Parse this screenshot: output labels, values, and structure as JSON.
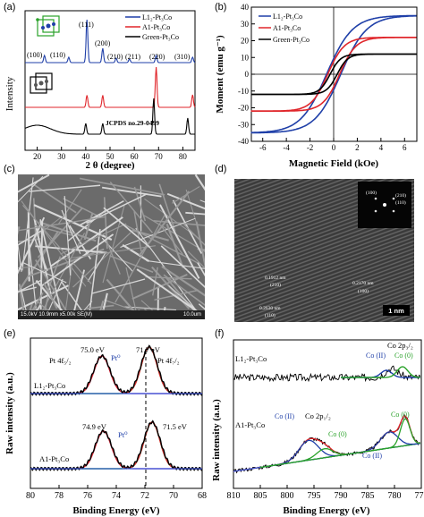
{
  "panels": {
    "a": {
      "label": "(a)",
      "xlabel": "2 θ (degree)",
      "ylabel": "Intensity",
      "xticks": [
        "20",
        "30",
        "40",
        "50",
        "60",
        "70",
        "80"
      ],
      "legend": [
        "L1₂-Pt₃Co",
        "A1-Pt₃Co",
        "Green-Pt₃Co"
      ],
      "peaks": [
        "(100)",
        "(110)",
        "(111)",
        "(200)",
        "(210)",
        "(211)",
        "(220)",
        "(310)"
      ],
      "ref": "JCPDS no.29-0499"
    },
    "b": {
      "label": "(b)",
      "xlabel": "Magnetic Field (kOe)",
      "ylabel": "Moment (emu g⁻¹)",
      "xticks": [
        "-6",
        "-4",
        "-2",
        "0",
        "2",
        "4",
        "6"
      ],
      "yticks": [
        "40",
        "30",
        "20",
        "10",
        "0",
        "-10",
        "-20",
        "-30",
        "-40"
      ],
      "legend": [
        "L1₂-Pt₃Co",
        "A1-Pt₃Co",
        "Green-Pt₃Co"
      ]
    },
    "c": {
      "label": "(c)",
      "sem_info": "15.0kV 10.9mm x5.00k SE(M)",
      "scale": "10.0um"
    },
    "d": {
      "label": "(d)",
      "fft_spots": [
        "(100)",
        "(210)",
        "(110)"
      ],
      "fringes": [
        "0.1912 nm",
        "(210)",
        "0.2170 nm",
        "(100)",
        "0.2630 nm",
        "(110)"
      ],
      "scale": "1 nm"
    },
    "e": {
      "label": "(e)",
      "xlabel": "Binding Energy (eV)",
      "ylabel": "Raw intensity (a.u.)",
      "xticks": [
        "80",
        "78",
        "76",
        "74",
        "72",
        "70",
        "68"
      ],
      "top": {
        "name": "L1₂-Pt₃Co",
        "pk1": "75.0 eV",
        "pk2": "71.7 eV",
        "l1": "Pt 4f₅/₂",
        "l2": "Pt 4f₇/₂",
        "pt": "Pt⁰"
      },
      "bottom": {
        "name": "A1-Pt₃Co",
        "pk1": "74.9 eV",
        "pk2": "71.5 eV",
        "pt": "Pt⁰"
      }
    },
    "f": {
      "label": "(f)",
      "xlabel": "Binding Energy (eV)",
      "ylabel": "Raw intensity (a.u.)",
      "xticks": [
        "810",
        "805",
        "800",
        "795",
        "790",
        "785",
        "780",
        "775"
      ],
      "top": {
        "name": "L1₂-Pt₃Co",
        "c1": "Co 2p₃/₂",
        "c2": "Co (II)",
        "c3": "Co (0)"
      },
      "bottom": {
        "name": "A1-Pt₃Co",
        "c1": "Co (II)",
        "c2": "Co 2p₁/₂",
        "c3": "Co (0)",
        "c4": "Co (0)",
        "c5": "Co (II)"
      }
    }
  },
  "chart_data": [
    {
      "type": "line",
      "title": "",
      "xlabel": "2 θ (degree)",
      "ylabel": "Intensity",
      "xlim": [
        15,
        85
      ],
      "series": [
        {
          "name": "L1₂-Pt₃Co",
          "peaks_2theta": [
            23,
            33,
            40.5,
            47,
            52.5,
            58,
            69,
            84
          ]
        },
        {
          "name": "A1-Pt₃Co",
          "peaks_2theta": [
            40.5,
            47,
            69,
            84
          ]
        },
        {
          "name": "Green-Pt₃Co",
          "peaks_2theta": [
            40,
            47,
            68,
            82
          ]
        }
      ]
    },
    {
      "type": "line",
      "xlabel": "Magnetic Field (kOe)",
      "ylabel": "Moment (emu g⁻¹)",
      "xlim": [
        -7,
        7
      ],
      "ylim": [
        -40,
        40
      ],
      "series": [
        {
          "name": "L1₂-Pt₃Co",
          "Ms": 35
        },
        {
          "name": "A1-Pt₃Co",
          "Ms": 22
        },
        {
          "name": "Green-Pt₃Co",
          "Ms": 12
        }
      ]
    }
  ],
  "colors": {
    "blue": "#1f3fa8",
    "red": "#e0262b",
    "black": "#000000",
    "green": "#2aa22a",
    "purple": "#b86bd6"
  }
}
